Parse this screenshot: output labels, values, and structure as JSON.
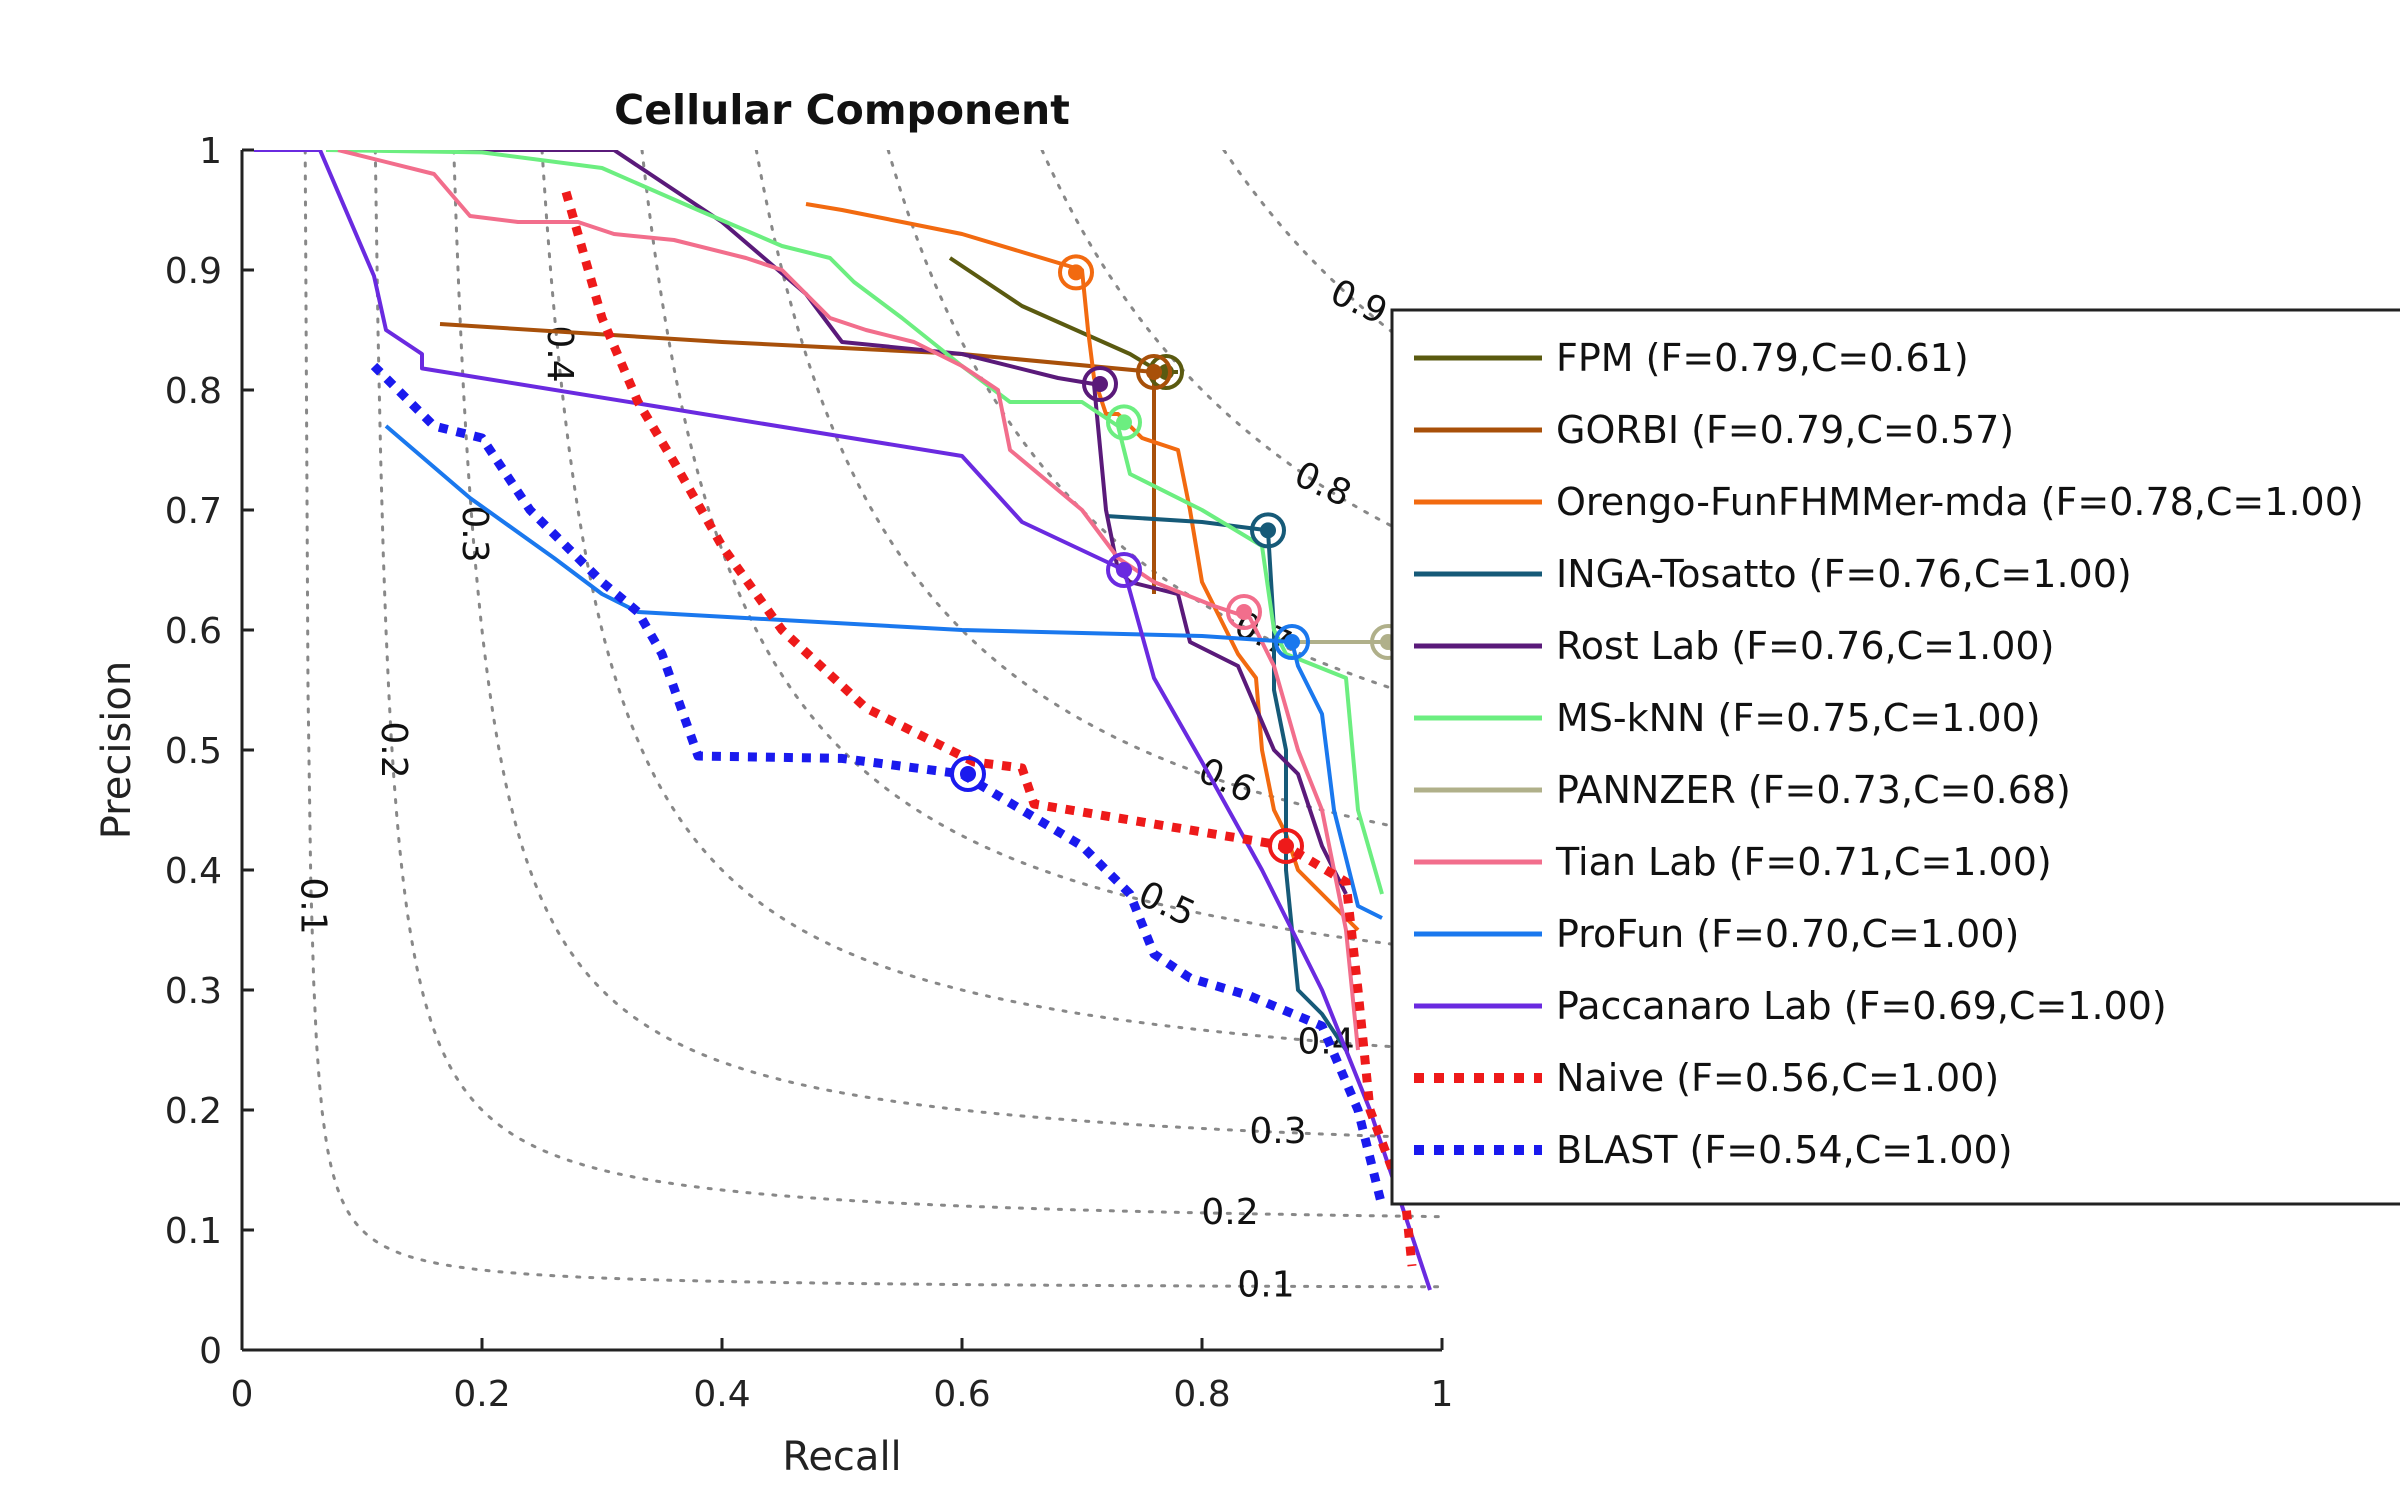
{
  "chart_data": {
    "type": "line",
    "title": "Cellular Component",
    "xlabel": "Recall",
    "ylabel": "Precision",
    "xlim": [
      0,
      1
    ],
    "ylim": [
      0,
      1
    ],
    "xticks": [
      "0",
      "0.2",
      "0.4",
      "0.6",
      "0.8",
      "1"
    ],
    "yticks": [
      "0",
      "0.1",
      "0.2",
      "0.3",
      "0.4",
      "0.5",
      "0.6",
      "0.7",
      "0.8",
      "0.9",
      "1"
    ],
    "grid": false,
    "legend_position": "right",
    "iso_f_curves": [
      {
        "f": 0.1,
        "label": "0.1"
      },
      {
        "f": 0.2,
        "label": "0.2"
      },
      {
        "f": 0.3,
        "label": "0.3"
      },
      {
        "f": 0.4,
        "label": "0.4"
      },
      {
        "f": 0.5,
        "label": "0.5"
      },
      {
        "f": 0.6,
        "label": "0.6"
      },
      {
        "f": 0.7,
        "label": "0.7"
      },
      {
        "f": 0.8,
        "label": "0.8"
      },
      {
        "f": 0.9,
        "label": "0.9"
      }
    ],
    "series": [
      {
        "name": "FPM (F=0.79,C=0.61)",
        "color": "#5a5a10",
        "style": "solid",
        "x": [
          0.59,
          0.65,
          0.74,
          0.765,
          0.78
        ],
        "y": [
          0.91,
          0.87,
          0.83,
          0.815,
          0.815
        ],
        "max_point": [
          0.77,
          0.815
        ]
      },
      {
        "name": "GORBI (F=0.79,C=0.57)",
        "color": "#a8500a",
        "style": "solid",
        "x": [
          0.165,
          0.4,
          0.6,
          0.76,
          0.76
        ],
        "y": [
          0.855,
          0.84,
          0.83,
          0.815,
          0.63
        ],
        "max_point": [
          0.76,
          0.815
        ]
      },
      {
        "name": "Orengo-FunFHMMer-mda (F=0.78,C=1.00)",
        "color": "#f26a10",
        "style": "solid",
        "x": [
          0.47,
          0.5,
          0.55,
          0.6,
          0.65,
          0.7,
          0.705,
          0.71,
          0.72,
          0.73,
          0.75,
          0.78,
          0.79,
          0.8,
          0.81,
          0.82,
          0.83,
          0.845,
          0.85,
          0.86,
          0.87,
          0.88,
          0.9,
          0.93
        ],
        "y": [
          0.955,
          0.95,
          0.94,
          0.93,
          0.915,
          0.9,
          0.85,
          0.81,
          0.78,
          0.78,
          0.76,
          0.75,
          0.7,
          0.64,
          0.62,
          0.6,
          0.58,
          0.56,
          0.5,
          0.45,
          0.43,
          0.4,
          0.38,
          0.35
        ],
        "max_point": [
          0.695,
          0.898
        ]
      },
      {
        "name": "INGA-Tosatto (F=0.76,C=1.00)",
        "color": "#165a78",
        "style": "solid",
        "x": [
          0.72,
          0.8,
          0.855,
          0.86,
          0.86,
          0.87,
          0.87,
          0.875,
          0.88,
          0.9,
          0.92
        ],
        "y": [
          0.695,
          0.69,
          0.683,
          0.6,
          0.55,
          0.5,
          0.4,
          0.35,
          0.3,
          0.28,
          0.25
        ],
        "max_point": [
          0.855,
          0.683
        ]
      },
      {
        "name": "Rost Lab (F=0.76,C=1.00)",
        "color": "#5a1a7a",
        "style": "solid",
        "x": [
          0.1,
          0.31,
          0.4,
          0.47,
          0.5,
          0.6,
          0.68,
          0.71,
          0.72,
          0.73,
          0.74,
          0.78,
          0.79,
          0.83,
          0.86,
          0.88,
          0.9,
          0.92
        ],
        "y": [
          1.0,
          1.0,
          0.94,
          0.88,
          0.84,
          0.83,
          0.81,
          0.805,
          0.7,
          0.65,
          0.64,
          0.63,
          0.59,
          0.57,
          0.5,
          0.48,
          0.42,
          0.38
        ],
        "max_point": [
          0.715,
          0.805
        ]
      },
      {
        "name": "MS-kNN (F=0.75,C=1.00)",
        "color": "#6cee80",
        "style": "solid",
        "x": [
          0.07,
          0.2,
          0.3,
          0.38,
          0.45,
          0.49,
          0.51,
          0.55,
          0.6,
          0.64,
          0.7,
          0.73,
          0.74,
          0.8,
          0.85,
          0.86,
          0.87,
          0.92,
          0.93,
          0.95
        ],
        "y": [
          1.0,
          0.998,
          0.985,
          0.95,
          0.92,
          0.91,
          0.89,
          0.86,
          0.82,
          0.79,
          0.79,
          0.77,
          0.73,
          0.7,
          0.67,
          0.6,
          0.58,
          0.56,
          0.45,
          0.38
        ],
        "max_point": [
          0.735,
          0.773
        ]
      },
      {
        "name": "PANNZER (F=0.73,C=0.68)",
        "color": "#b0b08a",
        "style": "solid",
        "x": [
          0.87,
          0.93,
          0.955,
          0.97
        ],
        "y": [
          0.59,
          0.59,
          0.59,
          0.56
        ],
        "max_point": [
          0.955,
          0.59
        ]
      },
      {
        "name": "Tian Lab (F=0.71,C=1.00)",
        "color": "#f26e8c",
        "style": "solid",
        "x": [
          0.08,
          0.16,
          0.19,
          0.23,
          0.28,
          0.31,
          0.36,
          0.42,
          0.45,
          0.49,
          0.52,
          0.56,
          0.6,
          0.63,
          0.64,
          0.7,
          0.73,
          0.76,
          0.81,
          0.84,
          0.86,
          0.88,
          0.9,
          0.92,
          0.93
        ],
        "y": [
          1.0,
          0.98,
          0.945,
          0.94,
          0.94,
          0.93,
          0.925,
          0.91,
          0.9,
          0.86,
          0.85,
          0.84,
          0.82,
          0.8,
          0.75,
          0.7,
          0.66,
          0.64,
          0.62,
          0.61,
          0.57,
          0.5,
          0.45,
          0.35,
          0.25
        ],
        "max_point": [
          0.835,
          0.615
        ]
      },
      {
        "name": "ProFun (F=0.70,C=1.00)",
        "color": "#1a78ee",
        "style": "solid",
        "x": [
          0.12,
          0.19,
          0.26,
          0.3,
          0.33,
          0.6,
          0.8,
          0.875,
          0.88,
          0.9,
          0.91,
          0.93,
          0.95
        ],
        "y": [
          0.77,
          0.71,
          0.66,
          0.63,
          0.615,
          0.6,
          0.595,
          0.59,
          0.57,
          0.53,
          0.45,
          0.37,
          0.36
        ],
        "max_point": [
          0.875,
          0.59
        ]
      },
      {
        "name": "Paccanaro Lab (F=0.69,C=1.00)",
        "color": "#6a2ae0",
        "style": "solid",
        "x": [
          0.01,
          0.065,
          0.11,
          0.12,
          0.15,
          0.15,
          0.6,
          0.65,
          0.735,
          0.76,
          0.8,
          0.85,
          0.9,
          0.94,
          0.99
        ],
        "y": [
          1.0,
          1.0,
          0.895,
          0.85,
          0.83,
          0.818,
          0.745,
          0.69,
          0.65,
          0.56,
          0.49,
          0.4,
          0.3,
          0.2,
          0.05
        ],
        "max_point": [
          0.735,
          0.65
        ]
      },
      {
        "name": "Naive (F=0.56,C=1.00)",
        "color": "#ee1a1a",
        "style": "dotted",
        "x": [
          0.27,
          0.3,
          0.33,
          0.36,
          0.4,
          0.45,
          0.52,
          0.58,
          0.61,
          0.65,
          0.66,
          0.87,
          0.92,
          0.93,
          0.94,
          0.97,
          0.975
        ],
        "y": [
          0.965,
          0.86,
          0.79,
          0.74,
          0.67,
          0.6,
          0.535,
          0.505,
          0.49,
          0.485,
          0.455,
          0.42,
          0.39,
          0.3,
          0.2,
          0.12,
          0.07
        ],
        "max_point": [
          0.87,
          0.42
        ]
      },
      {
        "name": "BLAST (F=0.54,C=1.00)",
        "color": "#1a1aee",
        "style": "dotted",
        "x": [
          0.11,
          0.16,
          0.2,
          0.24,
          0.3,
          0.33,
          0.35,
          0.38,
          0.5,
          0.6,
          0.65,
          0.7,
          0.74,
          0.76,
          0.79,
          0.84,
          0.9,
          0.93,
          0.95
        ],
        "y": [
          0.82,
          0.77,
          0.76,
          0.7,
          0.64,
          0.615,
          0.58,
          0.495,
          0.493,
          0.48,
          0.45,
          0.42,
          0.38,
          0.33,
          0.31,
          0.295,
          0.27,
          0.2,
          0.12
        ],
        "max_point": [
          0.605,
          0.48
        ]
      }
    ]
  }
}
